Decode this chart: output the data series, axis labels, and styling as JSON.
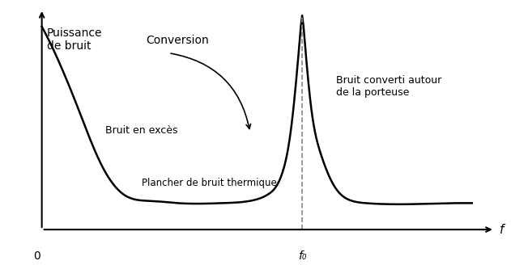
{
  "background_color": "#ffffff",
  "line_color": "#000000",
  "arrow_color": "#000000",
  "dashed_color": "#888888",
  "ylabel": "Puissance\nde bruit",
  "xlabel": "f",
  "x0_label": "0",
  "f0_label": "f₀",
  "label_conversion": "Conversion",
  "label_bruit_exces": "Bruit en excès",
  "label_plancher": "Plancher de bruit thermique",
  "label_bruit_converti": "Bruit converti autour\nde la porteuse",
  "figsize": [
    6.31,
    3.28
  ],
  "dpi": 100,
  "curve_color": "#000000",
  "curve_lw": 1.8
}
